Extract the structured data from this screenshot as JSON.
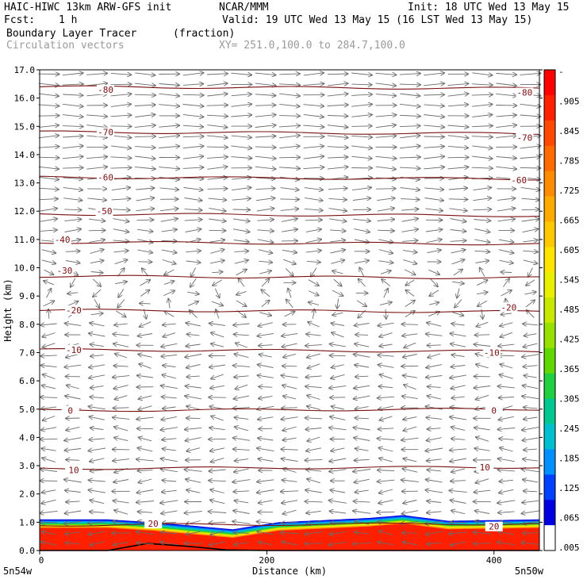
{
  "header": {
    "model": "HAIC-HIWC 13km ARW-GFS init",
    "org": "NCAR/MMM",
    "init": "Init: 18 UTC Wed 13 May 15",
    "fcst_label": "Fcst:",
    "fcst_value": "1 h",
    "valid": "Valid: 19 UTC Wed 13 May 15 (16 LST Wed 13 May 15)",
    "field": "Boundary Layer Tracer",
    "field_units": "(fraction)",
    "vectors": "Circulation vectors",
    "xy": "XY= 251.0,100.0 to 284.7,100.0"
  },
  "chart_data": {
    "type": "cross-section",
    "ylabel": "Height (km)",
    "xlabel": "Distance (km)",
    "xlim": [
      0,
      440
    ],
    "ylim": [
      0,
      17
    ],
    "y_ticks": [
      "0.0",
      "1.0",
      "2.0",
      "3.0",
      "4.0",
      "5.0",
      "6.0",
      "7.0",
      "8.0",
      "9.0",
      "10.0",
      "11.0",
      "12.0",
      "13.0",
      "14.0",
      "15.0",
      "16.0",
      "17.0"
    ],
    "x_ticks": [
      {
        "value": 0,
        "label": "0"
      },
      {
        "value": 200,
        "label": "200"
      },
      {
        "value": 400,
        "label": "400"
      }
    ],
    "x_end_labels": {
      "left": "5n54w",
      "right": "5n50w"
    },
    "colorbar_labels": [
      "-",
      ".905",
      ".845",
      ".785",
      ".725",
      ".665",
      ".605",
      ".545",
      ".485",
      ".425",
      ".365",
      ".305",
      ".245",
      ".185",
      ".125",
      ".065",
      ".005"
    ],
    "colorbar_colors": [
      "#ff0000",
      "#ff2000",
      "#ff4800",
      "#ff6a00",
      "#ff8c00",
      "#ffaa00",
      "#ffc800",
      "#ffe400",
      "#e8f000",
      "#c8e800",
      "#98e000",
      "#60d800",
      "#20d040",
      "#00c890",
      "#00c0d0",
      "#0090ff",
      "#0040ff",
      "#0000e0",
      "#ffffff"
    ],
    "temperature_contours": [
      {
        "value": -80,
        "y": 16.4
      },
      {
        "value": -70,
        "y": 14.8
      },
      {
        "value": -60,
        "y": 13.2
      },
      {
        "value": -50,
        "y": 11.9
      },
      {
        "value": -40,
        "y": 10.9
      },
      {
        "value": -30,
        "y": 9.7
      },
      {
        "value": -20,
        "y": 8.5
      },
      {
        "value": -10,
        "y": 7.1
      },
      {
        "value": 0,
        "y": 4.95
      },
      {
        "value": 10,
        "y": 2.9
      },
      {
        "value": 20,
        "y": 0.9
      }
    ],
    "contour_labels": [
      {
        "text": "-80",
        "x": 58,
        "y": 16.3
      },
      {
        "text": "-80",
        "x": 427,
        "y": 16.2
      },
      {
        "text": "-70",
        "x": 58,
        "y": 14.8
      },
      {
        "text": "-70",
        "x": 427,
        "y": 14.6
      },
      {
        "text": "-60",
        "x": 58,
        "y": 13.2
      },
      {
        "text": "-60",
        "x": 422,
        "y": 13.1
      },
      {
        "text": "-50",
        "x": 57,
        "y": 12.0
      },
      {
        "text": "-40",
        "x": 20,
        "y": 11.0
      },
      {
        "text": "-30",
        "x": 22,
        "y": 9.9
      },
      {
        "text": "-20",
        "x": 30,
        "y": 8.5
      },
      {
        "text": "-20",
        "x": 413,
        "y": 8.6
      },
      {
        "text": "-10",
        "x": 30,
        "y": 7.1
      },
      {
        "text": "-10",
        "x": 398,
        "y": 7.0
      },
      {
        "text": "0",
        "x": 27,
        "y": 4.95
      },
      {
        "text": "0",
        "x": 400,
        "y": 4.95
      },
      {
        "text": "10",
        "x": 30,
        "y": 2.85
      },
      {
        "text": "10",
        "x": 392,
        "y": 2.95
      },
      {
        "text": "20",
        "x": 100,
        "y": 0.95
      },
      {
        "text": "20",
        "x": 400,
        "y": 0.85
      }
    ],
    "tracer_top_km": [
      [
        0,
        1.1
      ],
      [
        60,
        1.1
      ],
      [
        100,
        1.0
      ],
      [
        170,
        0.75
      ],
      [
        210,
        1.0
      ],
      [
        290,
        1.15
      ],
      [
        320,
        1.25
      ],
      [
        360,
        1.05
      ],
      [
        440,
        1.1
      ]
    ],
    "terrain_km": [
      [
        0,
        0.0
      ],
      [
        60,
        0.0
      ],
      [
        95,
        0.25
      ],
      [
        130,
        0.15
      ],
      [
        165,
        0.02
      ],
      [
        200,
        0.0
      ],
      [
        440,
        0.0
      ]
    ]
  }
}
